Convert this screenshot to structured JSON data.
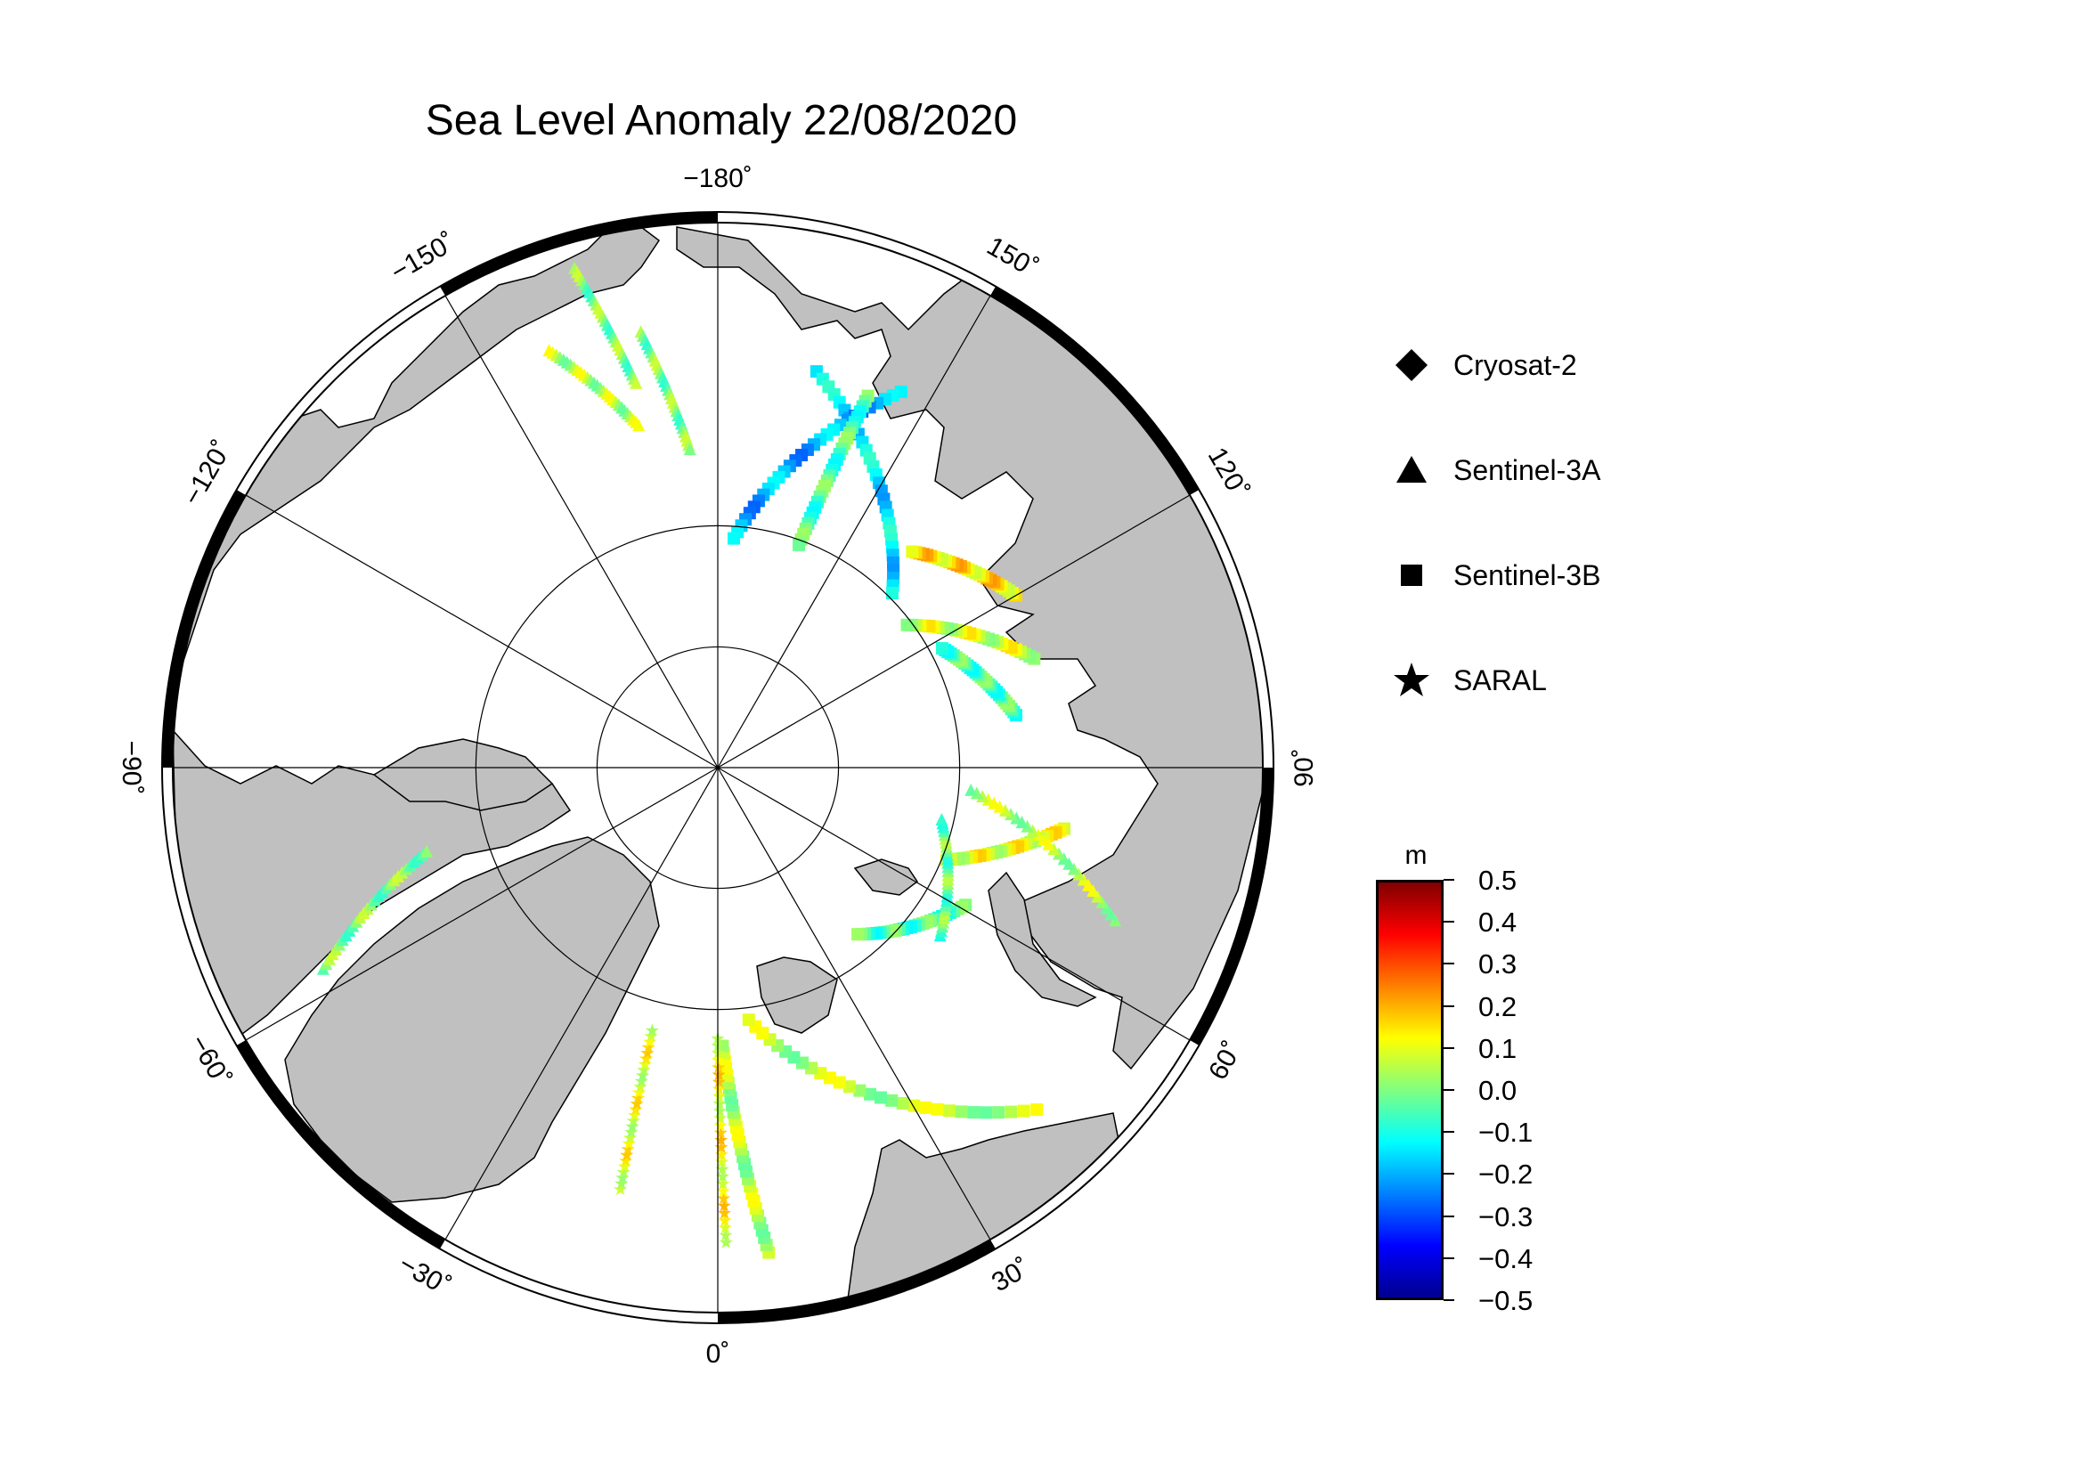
{
  "title": "Sea Level Anomaly 22/08/2020",
  "map": {
    "projection": "north-polar-stereographic",
    "lat_circles_deg": [
      80,
      85
    ],
    "meridian_step_deg": 30,
    "longitude_labels": [
      {
        "lon": 180,
        "text": "−180˚"
      },
      {
        "lon": 150,
        "text": "150˚"
      },
      {
        "lon": 120,
        "text": "120˚"
      },
      {
        "lon": 90,
        "text": "90˚"
      },
      {
        "lon": 60,
        "text": "60˚"
      },
      {
        "lon": 30,
        "text": "30˚"
      },
      {
        "lon": 0,
        "text": "0˚"
      },
      {
        "lon": -30,
        "text": "−30˚"
      },
      {
        "lon": -60,
        "text": "−60˚"
      },
      {
        "lon": -90,
        "text": "−90˚"
      },
      {
        "lon": -120,
        "text": "−120˚"
      },
      {
        "lon": -150,
        "text": "−150˚"
      }
    ],
    "land_color": "#c0c0c0",
    "ocean_color": "#ffffff"
  },
  "legend": [
    {
      "symbol": "diamond-icon",
      "label": "Cryosat-2"
    },
    {
      "symbol": "triangle-icon",
      "label": "Sentinel-3A"
    },
    {
      "symbol": "square-icon",
      "label": "Sentinel-3B"
    },
    {
      "symbol": "star-icon",
      "label": "SARAL"
    }
  ],
  "colorbar": {
    "unit": "m",
    "min": -0.5,
    "max": 0.5,
    "ticks": [
      "0.5",
      "0.4",
      "0.3",
      "0.2",
      "0.1",
      "0.0",
      "−0.1",
      "−0.2",
      "−0.3",
      "−0.4",
      "−0.5"
    ],
    "colormap": [
      "#00008f",
      "#0000ff",
      "#0080ff",
      "#00ffff",
      "#80ff80",
      "#ffff00",
      "#ff8000",
      "#ff0000",
      "#800000"
    ]
  },
  "tracks": [
    {
      "satellite": "Sentinel-3B",
      "start": [
        73.2,
        166
      ],
      "end": [
        79.8,
        135
      ],
      "value": -0.15
    },
    {
      "satellite": "Sentinel-3B",
      "start": [
        72.8,
        154
      ],
      "end": [
        80.5,
        176
      ],
      "value": -0.2
    },
    {
      "satellite": "Sentinel-3B",
      "start": [
        73.5,
        158
      ],
      "end": [
        80.2,
        160
      ],
      "value": -0.05
    },
    {
      "satellite": "Sentinel-3B",
      "start": [
        75.8,
        120
      ],
      "end": [
        78,
        138
      ],
      "value": 0.15
    },
    {
      "satellite": "Sentinel-3B",
      "start": [
        76.2,
        109
      ],
      "end": [
        80.2,
        127
      ],
      "value": 0.08
    },
    {
      "satellite": "Sentinel-3B",
      "start": [
        77.5,
        100
      ],
      "end": [
        79.5,
        118
      ],
      "value": -0.05
    },
    {
      "satellite": "Sentinel-3B",
      "start": [
        75.5,
        80
      ],
      "end": [
        79.8,
        68
      ],
      "value": 0.1
    },
    {
      "satellite": "Sentinel-3B",
      "start": [
        78.3,
        61
      ],
      "end": [
        81.0,
        40
      ],
      "value": -0.05
    },
    {
      "satellite": "Sentinel-3B",
      "start": [
        70.8,
        43
      ],
      "end": [
        79.5,
        7
      ],
      "value": 0.05
    },
    {
      "satellite": "Sentinel-3B",
      "start": [
        70.0,
        6
      ],
      "end": [
        78.5,
        1
      ],
      "value": 0.05
    },
    {
      "satellite": "Sentinel-3A",
      "start": [
        72.5,
        69
      ],
      "end": [
        79.5,
        85
      ],
      "value": 0.05
    },
    {
      "satellite": "Sentinel-3A",
      "start": [
        78.5,
        53
      ],
      "end": [
        80.5,
        77
      ],
      "value": -0.02
    },
    {
      "satellite": "Sentinel-3A",
      "start": [
        71.8,
        -63
      ],
      "end": [
        77.5,
        -74
      ],
      "value": 0.0
    },
    {
      "satellite": "Sentinel-3A",
      "start": [
        68.7,
        -164
      ],
      "end": [
        73.8,
        -168
      ],
      "value": 0.0
    },
    {
      "satellite": "Sentinel-3A",
      "start": [
        71.5,
        -158
      ],
      "end": [
        75.5,
        -167
      ],
      "value": 0.05
    },
    {
      "satellite": "Sentinel-3A",
      "start": [
        71.8,
        -170
      ],
      "end": [
        76.8,
        -175
      ],
      "value": 0.0
    },
    {
      "satellite": "SARAL",
      "start": [
        72.2,
        -13
      ],
      "end": [
        78.8,
        -14
      ],
      "value": 0.1
    },
    {
      "satellite": "SARAL",
      "start": [
        70.5,
        1
      ],
      "end": [
        78.8,
        0
      ],
      "value": 0.12
    }
  ]
}
